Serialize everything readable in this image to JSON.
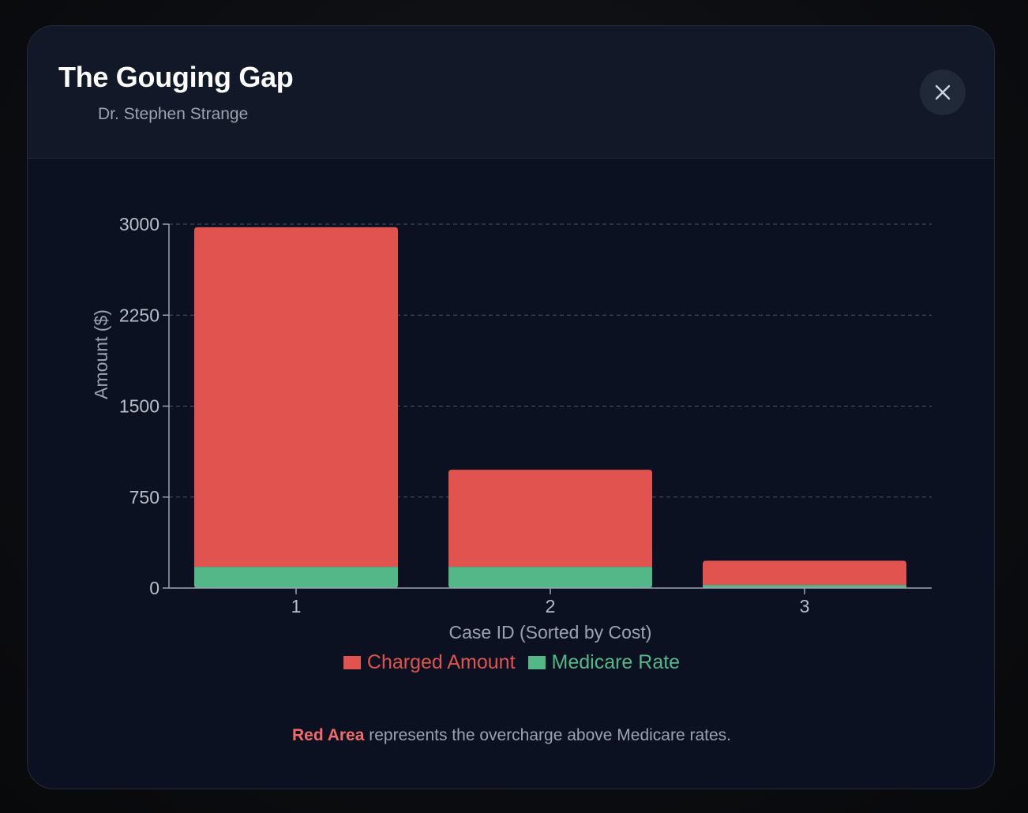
{
  "modal": {
    "title": "The Gouging Gap",
    "subtitle": "Dr. Stephen Strange"
  },
  "footnote": {
    "highlight": "Red Area",
    "text": " represents the overcharge above Medicare rates."
  },
  "colors": {
    "charged": "#e0534f",
    "medicare": "#54b788",
    "axis": "#9ca3af",
    "grid": "#4b5563",
    "tick_text": "#b8bec8"
  },
  "chart_data": {
    "type": "bar",
    "stacked": true,
    "title": "",
    "xlabel": "Case ID (Sorted by Cost)",
    "ylabel": "Amount ($)",
    "categories": [
      "1",
      "2",
      "3"
    ],
    "ylim": [
      0,
      3000
    ],
    "yticks": [
      0,
      750,
      1500,
      2250,
      3000
    ],
    "grid": true,
    "legend_position": "bottom-center",
    "series": [
      {
        "name": "Medicare Rate",
        "values": [
          175,
          175,
          25
        ]
      },
      {
        "name": "Charged Amount",
        "values": [
          2800,
          800,
          200
        ]
      }
    ]
  },
  "legend": {
    "charged_label": "Charged Amount",
    "medicare_label": "Medicare Rate"
  }
}
